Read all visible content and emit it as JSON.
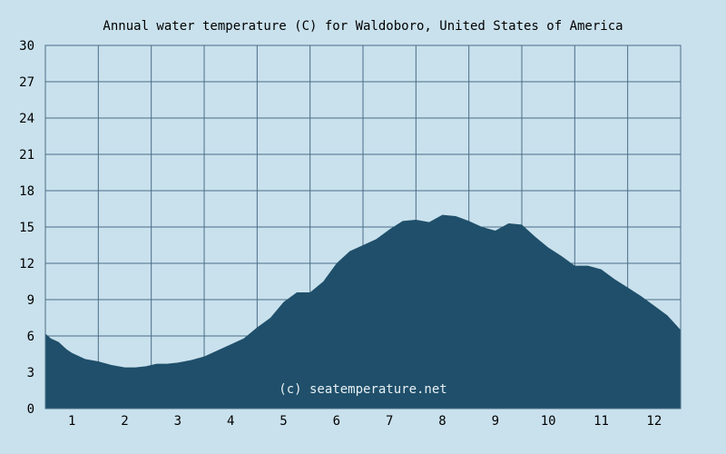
{
  "chart_data": {
    "type": "area",
    "title": "Annual water temperature (C) for Waldoboro, United States of America",
    "xlabel": "",
    "ylabel": "",
    "ylim": [
      0,
      30
    ],
    "yticks": [
      "0",
      "3",
      "6",
      "9",
      "12",
      "15",
      "18",
      "21",
      "24",
      "27",
      "30"
    ],
    "xticks": [
      "1",
      "2",
      "3",
      "4",
      "5",
      "6",
      "7",
      "8",
      "9",
      "10",
      "11",
      "12"
    ],
    "xlim": [
      0.5,
      12.5
    ],
    "grid": true,
    "watermark": "(c) seatemperature.net",
    "colors": {
      "background": "#c9e1ed",
      "area": "#1f4f6a",
      "grid": "#4a6d86"
    },
    "x": [
      0.5,
      0.6,
      0.75,
      0.9,
      1.0,
      1.25,
      1.5,
      1.75,
      2.0,
      2.2,
      2.4,
      2.6,
      2.8,
      3.0,
      3.25,
      3.5,
      3.75,
      4.0,
      4.25,
      4.5,
      4.75,
      5.0,
      5.25,
      5.5,
      5.75,
      6.0,
      6.25,
      6.5,
      6.75,
      7.0,
      7.25,
      7.5,
      7.75,
      8.0,
      8.25,
      8.5,
      8.75,
      9.0,
      9.25,
      9.5,
      9.75,
      10.0,
      10.25,
      10.5,
      10.75,
      11.0,
      11.25,
      11.5,
      11.75,
      12.0,
      12.25,
      12.5
    ],
    "values": [
      6.2,
      5.8,
      5.5,
      4.9,
      4.6,
      4.1,
      3.9,
      3.6,
      3.4,
      3.4,
      3.5,
      3.7,
      3.7,
      3.8,
      4.0,
      4.3,
      4.8,
      5.3,
      5.8,
      6.7,
      7.5,
      8.8,
      9.6,
      9.6,
      10.5,
      12.0,
      13.0,
      13.5,
      14.0,
      14.8,
      15.5,
      15.6,
      15.4,
      16.0,
      15.9,
      15.5,
      15.0,
      14.7,
      15.3,
      15.2,
      14.2,
      13.3,
      12.6,
      11.8,
      11.8,
      11.5,
      10.7,
      10.0,
      9.3,
      8.5,
      7.7,
      6.5
    ]
  }
}
